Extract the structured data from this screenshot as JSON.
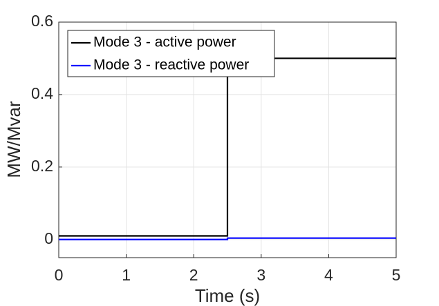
{
  "chart_data": {
    "type": "line",
    "x": [
      0,
      2.5,
      2.5,
      5
    ],
    "series": [
      {
        "name": "Mode 3 - active power",
        "color": "#000000",
        "values": [
          0.01,
          0.01,
          0.5,
          0.5
        ]
      },
      {
        "name": "Mode 3 - reactive power",
        "color": "#0000ff",
        "values": [
          0,
          0,
          0.004,
          0.004
        ]
      }
    ],
    "xlabel": "Time (s)",
    "ylabel": "MW/Mvar",
    "xlim": [
      0,
      5
    ],
    "xticks": [
      0,
      1,
      2,
      3,
      4,
      5
    ],
    "ylim": [
      -0.05,
      0.6
    ],
    "yticks": [
      0,
      0.2,
      0.4,
      0.6
    ],
    "grid": true,
    "legend": "top-left"
  }
}
